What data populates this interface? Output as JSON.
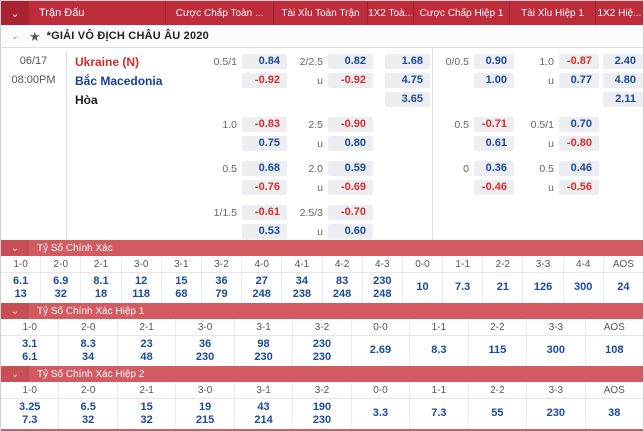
{
  "colors": {
    "header_bar": "#BE2B3B",
    "header_toggle": "#A92433",
    "section_bar": "#D25A60",
    "odds_positive": "#1A4A9C",
    "odds_negative": "#DC2B2B",
    "home_team": "#D42B2B",
    "away_team": "#1A3C9C",
    "odds_box_bg": "#ECEEF1"
  },
  "top_header": {
    "match_column": "Trận Đấu",
    "columns": [
      "Cược Chấp Toàn ...",
      "Tài Xỉu Toàn Trận",
      "1X2 Toà...",
      "Cược Chấp Hiệp 1",
      "Tài Xỉu Hiệp 1",
      "1X2 Hiệ..."
    ]
  },
  "league": {
    "name": "*GIẢI VÔ ĐỊCH CHÂU ÂU 2020"
  },
  "match": {
    "date": "06/17",
    "time": "08:00PM"
  },
  "odds": {
    "blocks": [
      {
        "rows": [
          {
            "team": "Ukraine (N)",
            "ft_hcp_line": "0.5/1",
            "ft_hcp": "0.84",
            "ft_ou_line": "2/2.5",
            "ft_ou": "0.82",
            "ft_1x2": "1.68",
            "h1_hcp_line": "0/0.5",
            "h1_hcp": "0.90",
            "h1_ou_line": "1.0",
            "h1_ou": "-0.87",
            "h1_1x2": "2.40"
          },
          {
            "team": "Bắc Macedonia",
            "ft_hcp": "-0.92",
            "ft_ou_line": "u",
            "ft_ou": "-0.92",
            "ft_1x2": "4.75",
            "h1_hcp": "1.00",
            "h1_ou_line": "u",
            "h1_ou": "0.77",
            "h1_1x2": "4.80"
          },
          {
            "team": "Hòa",
            "ft_1x2": "3.65",
            "h1_1x2": "2.11"
          }
        ]
      },
      {
        "rows": [
          {
            "ft_hcp_line": "1.0",
            "ft_hcp": "-0.83",
            "ft_ou_line": "2.5",
            "ft_ou": "-0.90",
            "h1_hcp_line": "0.5",
            "h1_hcp": "-0.71",
            "h1_ou_line": "0.5/1",
            "h1_ou": "0.70"
          },
          {
            "ft_hcp": "0.75",
            "ft_ou_line": "u",
            "ft_ou": "0.80",
            "h1_hcp": "0.61",
            "h1_ou_line": "u",
            "h1_ou": "-0.80"
          }
        ]
      },
      {
        "rows": [
          {
            "ft_hcp_line": "0.5",
            "ft_hcp": "0.68",
            "ft_ou_line": "2.0",
            "ft_ou": "0.59",
            "h1_hcp_line": "0",
            "h1_hcp": "0.36",
            "h1_ou_line": "0.5",
            "h1_ou": "0.46"
          },
          {
            "ft_hcp": "-0.76",
            "ft_ou_line": "u",
            "ft_ou": "-0.69",
            "h1_hcp": "-0.46",
            "h1_ou_line": "u",
            "h1_ou": "-0.56"
          }
        ]
      },
      {
        "rows": [
          {
            "ft_hcp_line": "1/1.5",
            "ft_hcp": "-0.61",
            "ft_ou_line": "2.5/3",
            "ft_ou": "-0.70"
          },
          {
            "ft_hcp": "0.53",
            "ft_ou_line": "u",
            "ft_ou": "0.60"
          }
        ]
      }
    ]
  },
  "sections": [
    {
      "title": "Tỷ Số Chính Xác",
      "columns": [
        {
          "score": "1-0",
          "v1": "6.1",
          "v2": "13"
        },
        {
          "score": "2-0",
          "v1": "6.9",
          "v2": "32"
        },
        {
          "score": "2-1",
          "v1": "8.1",
          "v2": "18"
        },
        {
          "score": "3-0",
          "v1": "12",
          "v2": "118"
        },
        {
          "score": "3-1",
          "v1": "15",
          "v2": "68"
        },
        {
          "score": "3-2",
          "v1": "36",
          "v2": "79"
        },
        {
          "score": "4-0",
          "v1": "27",
          "v2": "248"
        },
        {
          "score": "4-1",
          "v1": "34",
          "v2": "238"
        },
        {
          "score": "4-2",
          "v1": "83",
          "v2": "248"
        },
        {
          "score": "4-3",
          "v1": "230",
          "v2": "248"
        },
        {
          "score": "0-0",
          "v": "10"
        },
        {
          "score": "1-1",
          "v": "7.3"
        },
        {
          "score": "2-2",
          "v": "21"
        },
        {
          "score": "3-3",
          "v": "126"
        },
        {
          "score": "4-4",
          "v": "300"
        },
        {
          "score": "AOS",
          "v": "24"
        }
      ]
    },
    {
      "title": "Tỷ Số Chính Xác Hiệp 1",
      "columns": [
        {
          "score": "1-0",
          "v1": "3.1",
          "v2": "6.1"
        },
        {
          "score": "2-0",
          "v1": "8.3",
          "v2": "34"
        },
        {
          "score": "2-1",
          "v1": "23",
          "v2": "48"
        },
        {
          "score": "3-0",
          "v1": "36",
          "v2": "230"
        },
        {
          "score": "3-1",
          "v1": "98",
          "v2": "230"
        },
        {
          "score": "3-2",
          "v1": "230",
          "v2": "230"
        },
        {
          "score": "0-0",
          "v": "2.69"
        },
        {
          "score": "1-1",
          "v": "8.3"
        },
        {
          "score": "2-2",
          "v": "115"
        },
        {
          "score": "3-3",
          "v": "300"
        },
        {
          "score": "AOS",
          "v": "108"
        }
      ]
    },
    {
      "title": "Tỷ Số Chính Xác Hiệp 2",
      "columns": [
        {
          "score": "1-0",
          "v1": "3.25",
          "v2": "7.3"
        },
        {
          "score": "2-0",
          "v1": "6.5",
          "v2": "32"
        },
        {
          "score": "2-1",
          "v1": "15",
          "v2": "32"
        },
        {
          "score": "3-0",
          "v1": "19",
          "v2": "215"
        },
        {
          "score": "3-1",
          "v1": "43",
          "v2": "214"
        },
        {
          "score": "3-2",
          "v1": "190",
          "v2": "230"
        },
        {
          "score": "0-0",
          "v": "3.3"
        },
        {
          "score": "1-1",
          "v": "7.3"
        },
        {
          "score": "2-2",
          "v": "55"
        },
        {
          "score": "3-3",
          "v": "230"
        },
        {
          "score": "AOS",
          "v": "38"
        }
      ]
    }
  ]
}
